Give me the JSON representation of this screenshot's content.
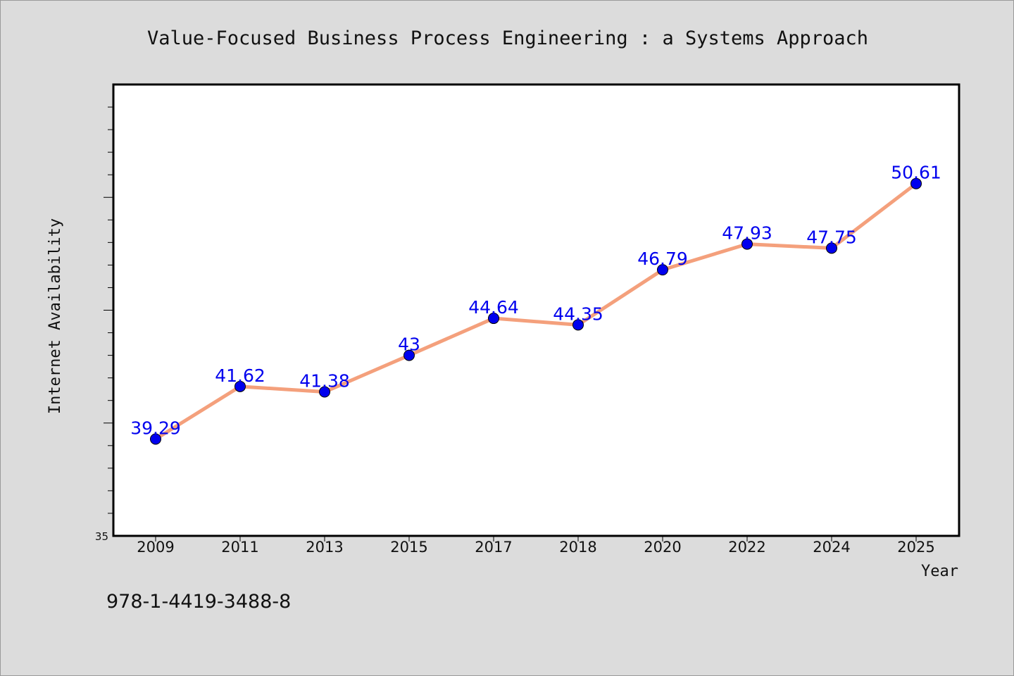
{
  "colors": {
    "line": "#f4a07c",
    "marker": "#0000ee",
    "data_label": "#0000ee",
    "plot_background": "#ffffff",
    "page_background": "#dcdcdc"
  },
  "footer": {
    "isbn": "978-1-4419-3488-8"
  },
  "chart_data": {
    "type": "line",
    "title": "Value-Focused Business Process Engineering : a Systems Approach",
    "xlabel": "Year",
    "ylabel": "Internet Availability",
    "ylim": [
      35,
      55
    ],
    "y_min_label": "35",
    "categories": [
      "2009",
      "2011",
      "2013",
      "2015",
      "2017",
      "2018",
      "2020",
      "2022",
      "2024",
      "2025"
    ],
    "series": [
      {
        "values": [
          39.29,
          41.62,
          41.38,
          43,
          44.64,
          44.35,
          46.79,
          47.93,
          47.75,
          50.61
        ],
        "value_labels": [
          "39.29",
          "41.62",
          "41.38",
          "43",
          "44.64",
          "44.35",
          "46.79",
          "47.93",
          "47.75",
          "50.61"
        ]
      }
    ],
    "grid": false,
    "legend": "none"
  }
}
